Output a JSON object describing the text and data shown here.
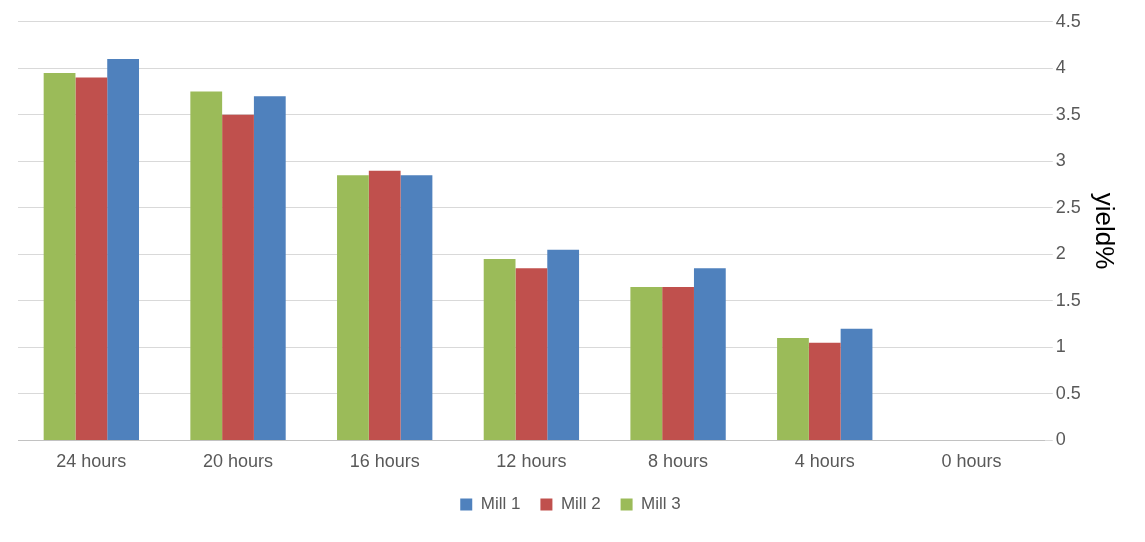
{
  "chart_data": {
    "type": "bar",
    "ylabel": "yield%",
    "categories": [
      "24 hours",
      "20 hours",
      "16 hours",
      "12 hours",
      "8 hours",
      "4 hours",
      "0 hours"
    ],
    "series": [
      {
        "name": "Mill 3",
        "color": "#9bbb59",
        "values": [
          3.95,
          3.75,
          2.85,
          1.95,
          1.65,
          1.1,
          0
        ]
      },
      {
        "name": "Mill 2",
        "color": "#c0504d",
        "values": [
          3.9,
          3.5,
          2.9,
          1.85,
          1.65,
          1.05,
          0
        ]
      },
      {
        "name": "Mill 1",
        "color": "#4f81bd",
        "values": [
          4.1,
          3.7,
          2.85,
          2.05,
          1.85,
          1.2,
          0
        ]
      }
    ],
    "ylim": [
      0,
      4.5
    ],
    "yticks": [
      0,
      0.5,
      1,
      1.5,
      2,
      2.5,
      3,
      3.5,
      4,
      4.5
    ],
    "grid": "y",
    "legend": "bottom"
  }
}
